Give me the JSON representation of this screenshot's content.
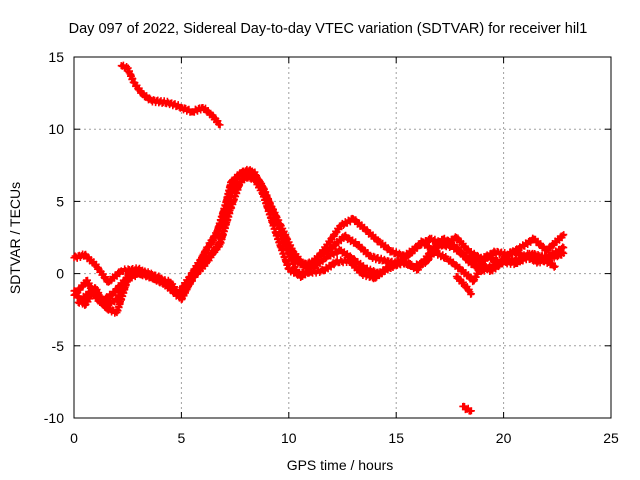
{
  "chart_data": {
    "type": "scatter",
    "title": "Day 097 of 2022, Sidereal Day-to-day VTEC variation (SDTVAR) for receiver hil1",
    "xlabel": "GPS time / hours",
    "ylabel": "SDTVAR / TECUs",
    "xlim": [
      0,
      25
    ],
    "ylim": [
      -10,
      15
    ],
    "xticks": [
      0,
      5,
      10,
      15,
      20,
      25
    ],
    "yticks": [
      -10,
      -5,
      0,
      5,
      10,
      15
    ],
    "grid": true,
    "marker": "+",
    "color": "#ff0000",
    "series": [
      {
        "name": "trace-high",
        "x": [
          2.2,
          2.5,
          2.8,
          3.2,
          3.6,
          4.0,
          4.5,
          5.0,
          5.5,
          6.0,
          6.4,
          6.8
        ],
        "y": [
          14.4,
          14.2,
          13.2,
          12.4,
          12.0,
          11.9,
          11.8,
          11.5,
          11.2,
          11.5,
          11.0,
          10.3
        ]
      },
      {
        "name": "trace-a",
        "x": [
          0.0,
          0.5,
          1.0,
          1.6,
          2.2,
          3.0,
          3.8,
          4.5,
          5.0,
          5.6,
          6.2,
          6.8,
          7.3,
          7.8,
          8.2,
          8.8,
          9.4,
          10.0,
          10.6,
          11.2,
          11.8,
          12.4,
          13.0,
          13.6,
          14.2,
          14.8,
          15.4,
          16.0,
          16.6,
          17.2,
          17.8,
          18.4,
          19.0,
          19.6,
          20.2,
          20.8,
          21.4,
          22.0,
          22.8
        ],
        "y": [
          1.1,
          1.3,
          0.6,
          -0.6,
          0.2,
          0.3,
          -0.4,
          -0.6,
          -1.8,
          0.0,
          1.8,
          3.2,
          6.3,
          7.0,
          7.2,
          6.0,
          3.8,
          1.5,
          0.6,
          0.8,
          2.0,
          3.3,
          3.8,
          3.0,
          2.2,
          1.5,
          1.2,
          1.9,
          2.4,
          2.0,
          2.5,
          1.5,
          1.0,
          1.5,
          1.3,
          1.8,
          2.4,
          1.6,
          2.7
        ]
      },
      {
        "name": "trace-b",
        "x": [
          0.0,
          0.5,
          1.0,
          1.5,
          2.0,
          2.5,
          3.0,
          3.5,
          4.0,
          4.5,
          5.0,
          5.6,
          6.2,
          6.8,
          7.3,
          7.8,
          8.4,
          9.0,
          9.6,
          10.2,
          10.8,
          11.4,
          12.0,
          12.6,
          13.2,
          13.8,
          14.4,
          15.0,
          15.6,
          16.2,
          16.8,
          17.4,
          18.0,
          18.6,
          19.2,
          19.8,
          20.4,
          21.0,
          21.6,
          22.2,
          22.8
        ],
        "y": [
          -1.2,
          -2.2,
          -1.0,
          -2.4,
          -2.7,
          -0.4,
          0.2,
          0.0,
          -0.3,
          -0.9,
          -1.5,
          0.1,
          1.0,
          2.0,
          4.5,
          6.6,
          7.0,
          5.2,
          3.4,
          1.5,
          0.4,
          1.2,
          1.8,
          2.6,
          2.0,
          1.2,
          0.9,
          0.7,
          1.3,
          2.2,
          1.5,
          1.0,
          0.3,
          -0.5,
          1.2,
          0.8,
          1.5,
          1.2,
          0.8,
          1.1,
          1.4
        ]
      },
      {
        "name": "trace-c",
        "x": [
          0.0,
          0.6,
          1.2,
          1.8,
          2.4,
          3.0,
          3.6,
          4.2,
          4.8,
          5.4,
          6.0,
          6.6,
          7.2,
          7.7,
          8.2,
          8.8,
          9.4,
          10.0,
          10.6,
          11.2,
          11.8,
          12.4,
          13.0,
          13.6,
          14.2,
          14.8,
          15.4,
          16.0,
          16.6,
          17.2,
          17.8,
          18.4,
          19.0,
          19.6,
          20.2,
          20.8,
          21.4,
          22.0,
          22.8
        ],
        "y": [
          -1.5,
          -0.5,
          -2.0,
          -1.4,
          -0.4,
          0.0,
          -0.2,
          -0.7,
          -1.5,
          -0.2,
          1.2,
          2.6,
          5.5,
          6.9,
          7.1,
          5.5,
          2.8,
          0.3,
          -0.2,
          0.5,
          1.2,
          1.6,
          1.0,
          0.3,
          0.0,
          0.5,
          0.8,
          0.3,
          1.5,
          2.4,
          1.8,
          0.8,
          0.2,
          0.6,
          1.0,
          0.9,
          1.3,
          1.1,
          1.8
        ]
      },
      {
        "name": "trace-d",
        "x": [
          0.2,
          0.8,
          1.4,
          2.0,
          2.6,
          3.2,
          3.8,
          4.4,
          5.0,
          5.6,
          6.2,
          6.8,
          7.4,
          8.0,
          8.6,
          9.2,
          9.8,
          10.4,
          11.0,
          11.6,
          12.2,
          12.8,
          13.4,
          14.0,
          14.6,
          15.2,
          15.8,
          16.4,
          17.0,
          17.6,
          18.2,
          18.8,
          19.4,
          20.0,
          20.6,
          21.2,
          21.8,
          22.4
        ],
        "y": [
          -2.0,
          -1.2,
          -2.2,
          -1.8,
          0.1,
          0.0,
          -0.4,
          -0.8,
          -1.6,
          -0.2,
          0.8,
          2.2,
          5.8,
          6.7,
          6.5,
          4.6,
          2.2,
          0.0,
          0.1,
          0.2,
          0.8,
          0.9,
          0.0,
          -0.3,
          0.4,
          0.9,
          0.5,
          0.8,
          2.0,
          1.9,
          1.2,
          0.9,
          0.2,
          0.8,
          0.7,
          1.4,
          1.0,
          0.5
        ]
      },
      {
        "name": "trace-dip",
        "x": [
          17.8,
          18.2,
          18.5
        ],
        "y": [
          -0.2,
          -0.8,
          -1.4
        ]
      },
      {
        "name": "trace-low",
        "x": [
          18.1,
          18.3,
          18.5
        ],
        "y": [
          -9.2,
          -9.4,
          -9.5
        ]
      }
    ]
  }
}
